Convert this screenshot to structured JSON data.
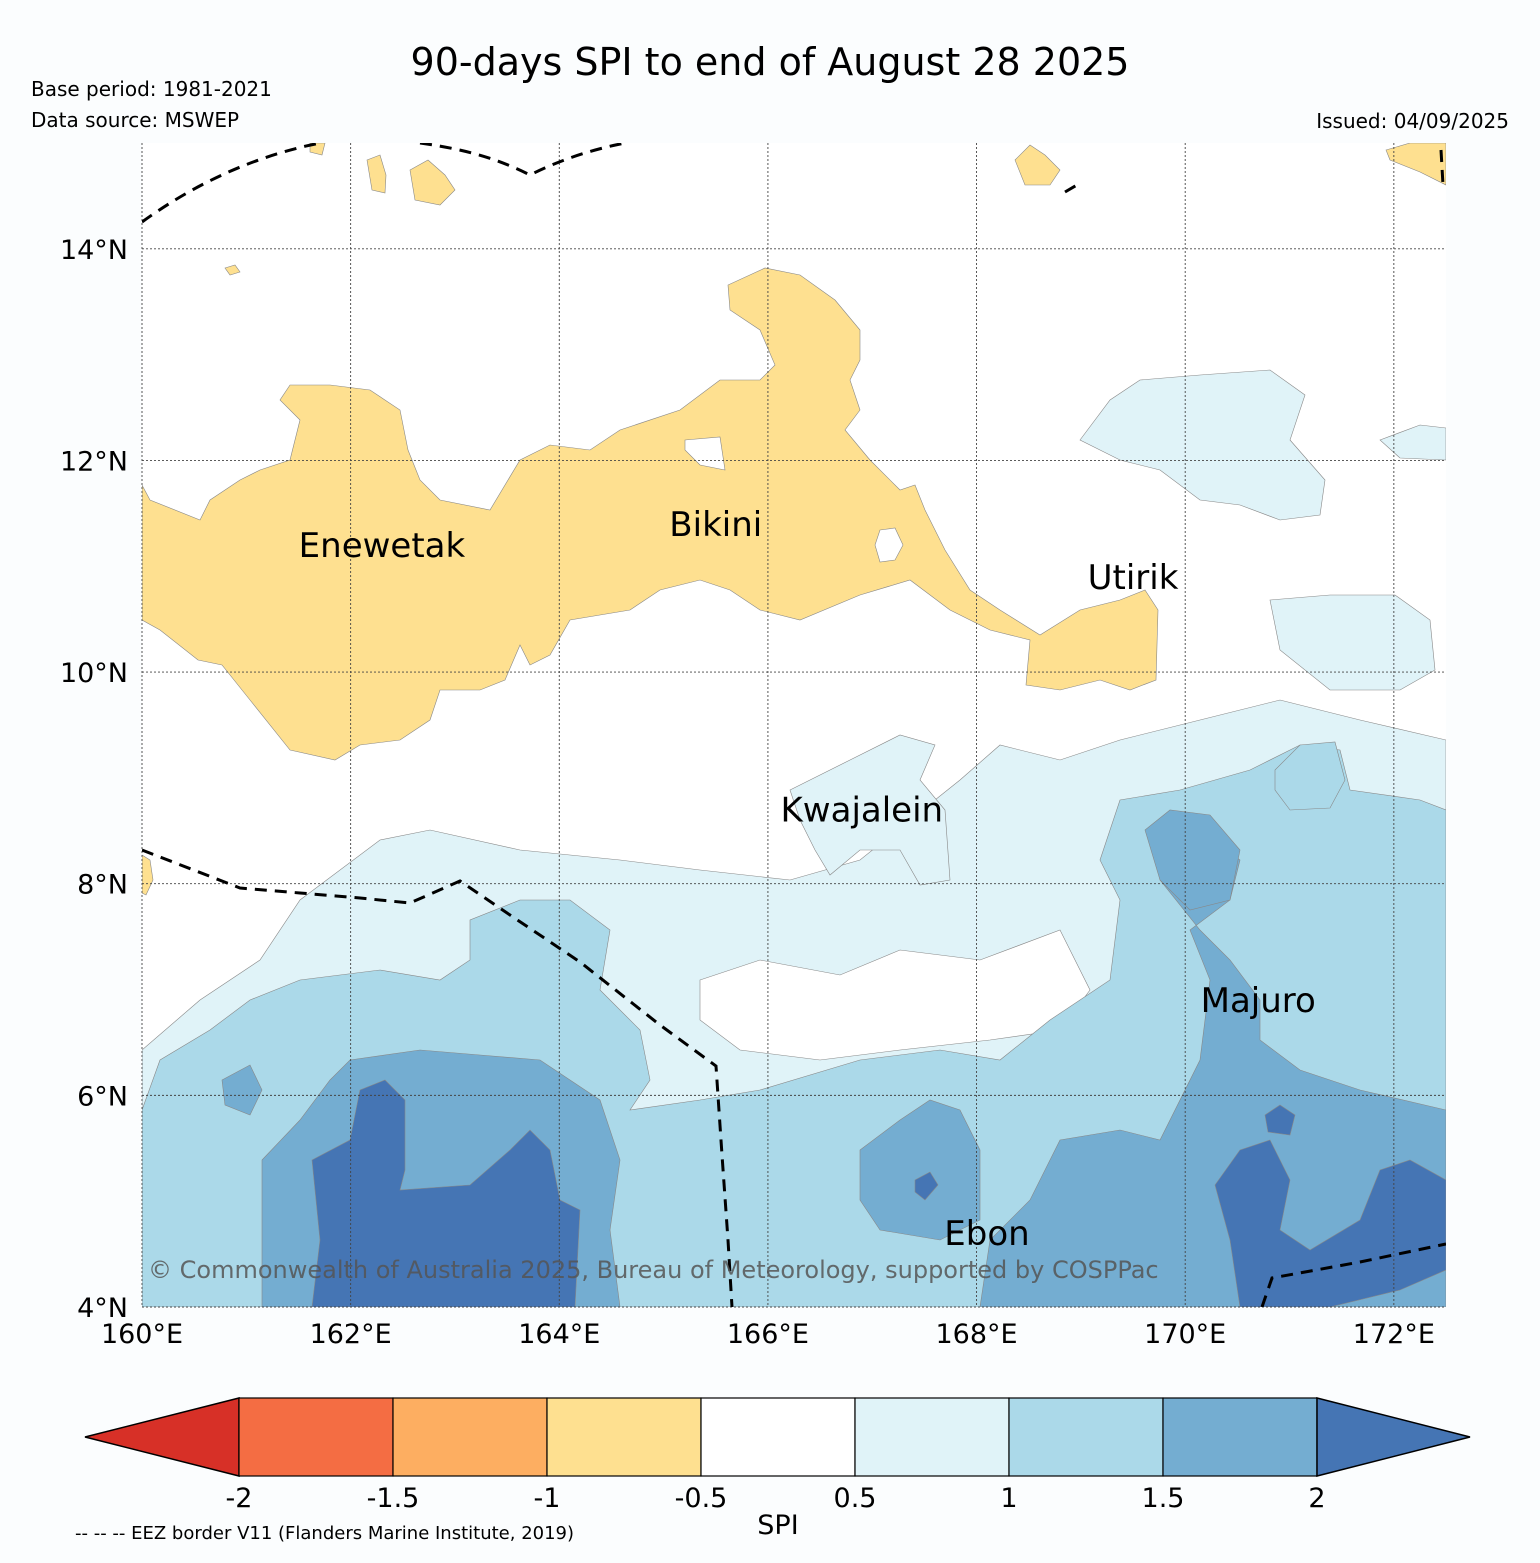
{
  "header": {
    "title": "90-days SPI to end of August 28 2025",
    "base_period": "Base period: 1981-2021",
    "data_source": "Data source: MSWEP",
    "issued": "Issued: 04/09/2025"
  },
  "map": {
    "lon_range": [
      160,
      172.5
    ],
    "lat_range": [
      4,
      15
    ],
    "lat_ticks": [
      "14°N",
      "12°N",
      "10°N",
      "8°N",
      "6°N",
      "4°N"
    ],
    "lon_ticks": [
      "160°E",
      "162°E",
      "164°E",
      "166°E",
      "168°E",
      "170°E",
      "172°E"
    ],
    "places": [
      {
        "name": "Enewetak",
        "lon": 162.3,
        "lat": 11.2
      },
      {
        "name": "Bikini",
        "lon": 165.5,
        "lat": 11.4
      },
      {
        "name": "Utirik",
        "lon": 169.5,
        "lat": 10.9
      },
      {
        "name": "Kwajalein",
        "lon": 166.9,
        "lat": 8.7
      },
      {
        "name": "Majuro",
        "lon": 170.7,
        "lat": 6.9
      },
      {
        "name": "Ebon",
        "lon": 168.1,
        "lat": 4.7
      }
    ],
    "copyright": "© Commonwealth of Australia 2025, Bureau of Meteorology, supported by COSPPac"
  },
  "colorbar": {
    "label": "SPI",
    "ticks": [
      "-2",
      "-1.5",
      "-1",
      "-0.5",
      "0.5",
      "1",
      "1.5",
      "2"
    ],
    "colors": [
      "#d73027",
      "#f46d43",
      "#fdae61",
      "#fee090",
      "#ffffff",
      "#e0f3f8",
      "#abd9e9",
      "#74add1",
      "#4575b4"
    ]
  },
  "footer": {
    "eez_note": "-- -- -- EEZ border V11 (Flanders Marine Institute, 2019)"
  }
}
